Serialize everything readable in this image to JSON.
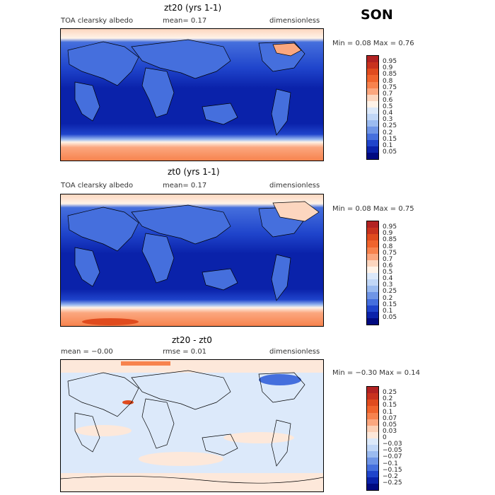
{
  "season": "SON",
  "panels": [
    {
      "title": "zt20 (yrs 1-1)",
      "left": "TOA clearsky albedo",
      "mid": "mean=   0.17",
      "right": "dimensionless",
      "minmax": "Min =   0.08  Max =   0.76",
      "levels": [
        "0.95",
        "0.9",
        "0.85",
        "0.8",
        "0.75",
        "0.7",
        "0.6",
        "0.5",
        "0.4",
        "0.3",
        "0.25",
        "0.2",
        "0.15",
        "0.1",
        "0.05"
      ],
      "colors": [
        "#b22222",
        "#c8321e",
        "#e04b1e",
        "#f0642d",
        "#f7834e",
        "#fba77f",
        "#fcd6bf",
        "#fff3e8",
        "#dce9fa",
        "#c1d7f7",
        "#9bbbf0",
        "#6f95e6",
        "#456fdd",
        "#1f44cb",
        "#0a22aa",
        "#000a80"
      ]
    },
    {
      "title": "zt0 (yrs 1-1)",
      "left": "TOA clearsky albedo",
      "mid": "mean=   0.17",
      "right": "dimensionless",
      "minmax": "Min =   0.08  Max =   0.75",
      "levels": [
        "0.95",
        "0.9",
        "0.85",
        "0.8",
        "0.75",
        "0.7",
        "0.6",
        "0.5",
        "0.4",
        "0.3",
        "0.25",
        "0.2",
        "0.15",
        "0.1",
        "0.05"
      ],
      "colors": [
        "#b22222",
        "#c8321e",
        "#e04b1e",
        "#f0642d",
        "#f7834e",
        "#fba77f",
        "#fcd6bf",
        "#fff3e8",
        "#dce9fa",
        "#c1d7f7",
        "#9bbbf0",
        "#6f95e6",
        "#456fdd",
        "#1f44cb",
        "#0a22aa",
        "#000a80"
      ]
    },
    {
      "title": "zt20 - zt0",
      "left": "mean =   −0.00",
      "mid": "rmse =   0.01",
      "right": "dimensionless",
      "minmax": "Min =  −0.30  Max =   0.14",
      "levels": [
        "0.25",
        "0.2",
        "0.15",
        "0.1",
        "0.07",
        "0.05",
        "0.03",
        "0",
        "−0.03",
        "−0.05",
        "−0.07",
        "−0.1",
        "−0.15",
        "−0.2",
        "−0.25"
      ],
      "colors": [
        "#b22222",
        "#c8321e",
        "#e04b1e",
        "#f0642d",
        "#f7834e",
        "#fba77f",
        "#fcd0b6",
        "#fde8da",
        "#dce9fa",
        "#c1d7f7",
        "#9bbbf0",
        "#6f95e6",
        "#456fdd",
        "#1f44cb",
        "#0a22aa",
        "#000a80"
      ]
    }
  ]
}
